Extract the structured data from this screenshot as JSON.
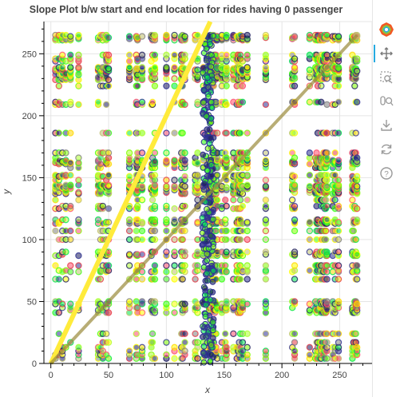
{
  "chart_data": {
    "type": "scatter",
    "title": "Slope Plot b/w start and end location for rides having 0 passenger",
    "xlabel": "x",
    "ylabel": "y",
    "xlim": [
      -6,
      278
    ],
    "ylim": [
      0,
      276
    ],
    "x_ticks": [
      0,
      50,
      100,
      150,
      200,
      250
    ],
    "y_ticks": [
      0,
      50,
      100,
      150,
      200,
      250
    ],
    "grid": true,
    "legend": "none",
    "location_ids": [
      4,
      7,
      10,
      13,
      17,
      24,
      41,
      43,
      45,
      48,
      50,
      68,
      74,
      75,
      79,
      87,
      88,
      90,
      100,
      107,
      113,
      114,
      116,
      125,
      127,
      132,
      137,
      138,
      140,
      141,
      142,
      143,
      144,
      148,
      151,
      152,
      158,
      161,
      162,
      163,
      164,
      166,
      170,
      186,
      209,
      211,
      224,
      229,
      230,
      231,
      233,
      234,
      236,
      237,
      238,
      239,
      244,
      246,
      249,
      261,
      262,
      263,
      264,
      265
    ],
    "series": [
      {
        "name": "",
        "color": "#ffeb3b",
        "type": "line",
        "slope": 2.0,
        "x": [
          0,
          138
        ],
        "y": [
          0,
          276
        ]
      },
      {
        "name": "",
        "color": "#9a8a3a",
        "type": "line",
        "slope": 1.0,
        "x": [
          0,
          265
        ],
        "y": [
          0,
          265
        ]
      }
    ],
    "point_palette": [
      "#1a1a5c",
      "#2e3192",
      "#00e64d",
      "#39ff14",
      "#7fff00",
      "#adff2f",
      "#ffff00",
      "#ffd700",
      "#e63946",
      "#ff4d6d",
      "#c0c070",
      "#808080"
    ]
  },
  "toolbar": {
    "tools": [
      {
        "name": "bokeh-logo-icon",
        "interactable": false
      },
      {
        "name": "pan-tool-icon",
        "interactable": true,
        "active": true
      },
      {
        "name": "box-zoom-tool-icon",
        "interactable": true
      },
      {
        "name": "wheel-zoom-tool-icon",
        "interactable": true
      },
      {
        "name": "save-tool-icon",
        "interactable": true
      },
      {
        "name": "reset-tool-icon",
        "interactable": true
      },
      {
        "name": "help-tool-icon",
        "interactable": true
      }
    ]
  }
}
